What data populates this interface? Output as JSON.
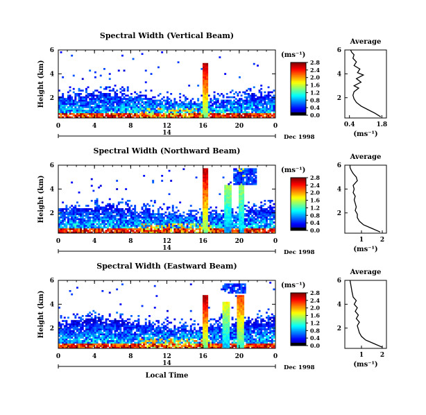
{
  "figure": {
    "xlabel_bottom": "Local Time",
    "date_label": "Dec 1998",
    "day_label": "14",
    "colorbar_unit": "(ms⁻¹)",
    "avg_title": "Average",
    "avg_xlabel": "(ms⁻¹)"
  },
  "chart_data": [
    {
      "type": "heatmap",
      "title": "Spectral Width (Vertical Beam)",
      "ylabel": "Height (km)",
      "xlabel": "Local Time",
      "x_ticks": [
        "0",
        "4",
        "8",
        "12",
        "16",
        "20",
        "0"
      ],
      "xlim": [
        0,
        24
      ],
      "y_ticks": [
        "2",
        "4",
        "6"
      ],
      "ylim": [
        0.3,
        6
      ],
      "colorbar": {
        "ticks": [
          "0.0",
          "0.4",
          "0.8",
          "1.2",
          "1.6",
          "2.0",
          "2.4",
          "2.8"
        ],
        "range": [
          0,
          3.0
        ]
      },
      "features": {
        "boundary_layer_top_km": 2.0,
        "spikes": [
          {
            "time": 16.3,
            "top_km": 5.0,
            "max": 3.0
          }
        ],
        "upper_echo_blocks": []
      }
    },
    {
      "type": "line",
      "title": "Average",
      "ylabel": "",
      "xlabel": "(ms⁻¹)",
      "x_ticks": [
        "0.4",
        "1.8"
      ],
      "x_tick_values": [
        0.4,
        1.8
      ],
      "xlim": [
        0.2,
        2.0
      ],
      "y_ticks": [
        "2",
        "4",
        "6"
      ],
      "ylim": [
        0.3,
        6
      ],
      "series": [
        {
          "x": [
            1.75,
            1.5,
            1.2,
            0.9,
            0.7,
            0.6,
            0.55,
            0.6,
            0.8,
            0.6,
            0.9,
            0.7,
            1.0,
            0.75,
            0.85,
            0.6,
            0.7,
            0.55,
            0.6,
            0.5,
            0.45
          ],
          "y": [
            0.4,
            0.7,
            1.0,
            1.3,
            1.6,
            1.9,
            2.2,
            2.5,
            2.8,
            3.0,
            3.3,
            3.6,
            3.9,
            4.1,
            4.4,
            4.7,
            5.0,
            5.3,
            5.6,
            5.8,
            6.0
          ]
        }
      ]
    },
    {
      "type": "heatmap",
      "title": "Spectral Width (Northward Beam)",
      "ylabel": "Height (km)",
      "xlabel": "Local Time",
      "x_ticks": [
        "0",
        "4",
        "8",
        "12",
        "16",
        "20",
        "0"
      ],
      "xlim": [
        0,
        24
      ],
      "y_ticks": [
        "2",
        "4",
        "6"
      ],
      "ylim": [
        0.3,
        6
      ],
      "colorbar": {
        "ticks": [
          "0.0",
          "0.4",
          "0.8",
          "1.2",
          "1.6",
          "2.0",
          "2.4",
          "2.8"
        ],
        "range": [
          0,
          3.0
        ]
      },
      "features": {
        "boundary_layer_top_km": 2.2,
        "spikes": [
          {
            "time": 16.3,
            "top_km": 5.8,
            "max": 3.0
          },
          {
            "time": 18.8,
            "top_km": 4.5,
            "max": 1.8
          },
          {
            "time": 20.3,
            "top_km": 5.8,
            "max": 2.0
          }
        ],
        "upper_echo_blocks": [
          {
            "t0": 19.5,
            "t1": 22.0,
            "h0": 4.5,
            "h1": 5.9
          }
        ]
      }
    },
    {
      "type": "line",
      "title": "Average",
      "ylabel": "",
      "xlabel": "(ms⁻¹)",
      "x_ticks": [
        "1",
        "2"
      ],
      "x_tick_values": [
        1,
        2
      ],
      "xlim": [
        0.2,
        2.2
      ],
      "y_ticks": [
        "2",
        "4",
        "6"
      ],
      "ylim": [
        0.3,
        6
      ],
      "series": [
        {
          "x": [
            1.9,
            1.5,
            1.1,
            0.9,
            0.8,
            0.8,
            0.7,
            0.75,
            0.7,
            0.65,
            0.7,
            0.6,
            0.65,
            0.6,
            0.7,
            0.8,
            0.75,
            0.6,
            0.5,
            0.45,
            0.45
          ],
          "y": [
            0.4,
            0.7,
            1.0,
            1.3,
            1.6,
            1.9,
            2.2,
            2.5,
            2.8,
            3.1,
            3.4,
            3.7,
            4.0,
            4.3,
            4.5,
            4.7,
            5.0,
            5.3,
            5.6,
            5.8,
            6.0
          ]
        }
      ]
    },
    {
      "type": "heatmap",
      "title": "Spectral Width (Eastward Beam)",
      "ylabel": "Height (km)",
      "xlabel": "Local Time",
      "x_ticks": [
        "0",
        "4",
        "8",
        "12",
        "16",
        "20",
        "0"
      ],
      "xlim": [
        0,
        24
      ],
      "y_ticks": [
        "2",
        "4",
        "6"
      ],
      "ylim": [
        0.3,
        6
      ],
      "colorbar": {
        "ticks": [
          "0.0",
          "0.4",
          "0.8",
          "1.2",
          "1.6",
          "2.0",
          "2.4",
          "2.8"
        ],
        "range": [
          0,
          3.0
        ]
      },
      "features": {
        "boundary_layer_top_km": 2.4,
        "spikes": [
          {
            "time": 16.3,
            "top_km": 4.8,
            "max": 3.0
          },
          {
            "time": 18.6,
            "top_km": 4.3,
            "max": 2.0
          },
          {
            "time": 20.2,
            "top_km": 4.8,
            "max": 2.6
          }
        ],
        "upper_echo_blocks": [
          {
            "t0": 18.2,
            "t1": 20.8,
            "h0": 5.0,
            "h1": 5.9
          }
        ]
      }
    },
    {
      "type": "line",
      "title": "Average",
      "ylabel": "",
      "xlabel": "(ms⁻¹)",
      "x_ticks": [
        "1",
        "2"
      ],
      "x_tick_values": [
        1,
        2
      ],
      "xlim": [
        0.2,
        2.2
      ],
      "y_ticks": [
        "2",
        "4",
        "6"
      ],
      "ylim": [
        0.3,
        6
      ],
      "series": [
        {
          "x": [
            2.0,
            1.6,
            1.2,
            1.0,
            0.9,
            0.85,
            0.8,
            0.9,
            0.75,
            0.85,
            0.7,
            0.8,
            0.65,
            0.75,
            0.6,
            0.55,
            0.5,
            0.45
          ],
          "y": [
            0.4,
            0.7,
            1.0,
            1.3,
            1.6,
            1.9,
            2.2,
            2.5,
            2.8,
            3.1,
            3.4,
            3.7,
            4.0,
            4.3,
            4.6,
            5.0,
            5.5,
            6.0
          ]
        }
      ]
    }
  ]
}
